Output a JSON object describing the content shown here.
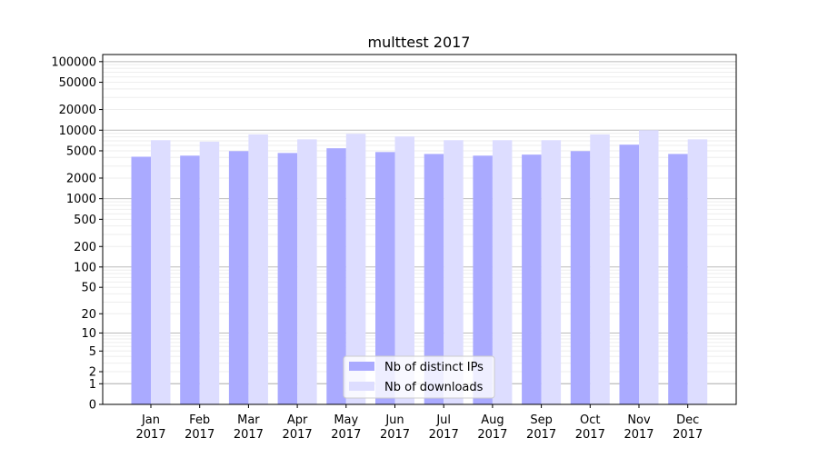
{
  "chart_data": {
    "type": "bar",
    "title": "multtest 2017",
    "yscale": "symlog",
    "ylim": [
      0,
      127000
    ],
    "grid": true,
    "legend_placement": "bottom-center",
    "categories": [
      "Jan\n2017",
      "Feb\n2017",
      "Mar\n2017",
      "Apr\n2017",
      "May\n2017",
      "Jun\n2017",
      "Jul\n2017",
      "Aug\n2017",
      "Sep\n2017",
      "Oct\n2017",
      "Nov\n2017",
      "Dec\n2017"
    ],
    "yticks": [
      0,
      1,
      2,
      5,
      10,
      20,
      50,
      100,
      200,
      500,
      1000,
      2000,
      5000,
      10000,
      20000,
      50000,
      100000
    ],
    "series": [
      {
        "name": "Nb of distinct IPs",
        "color": "#aaaaff",
        "values": [
          4100,
          4250,
          4950,
          4650,
          5450,
          4800,
          4500,
          4250,
          4400,
          4950,
          6150,
          4500
        ]
      },
      {
        "name": "Nb of downloads",
        "color": "#ddddff",
        "values": [
          7150,
          6800,
          8650,
          7350,
          8850,
          8100,
          7150,
          7150,
          7150,
          8650,
          10000,
          7350
        ]
      }
    ]
  }
}
